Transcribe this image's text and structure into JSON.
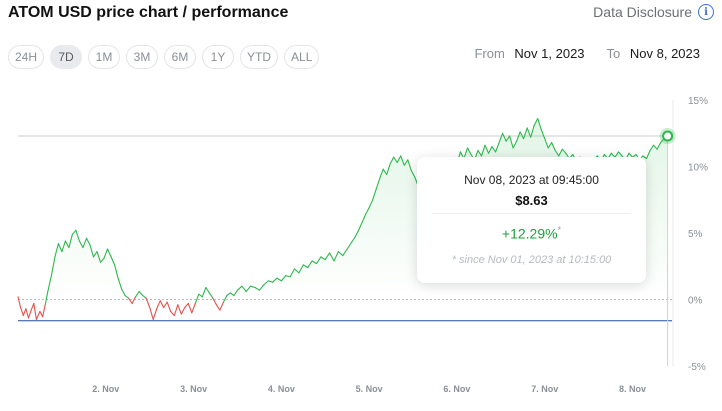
{
  "header": {
    "title": "ATOM USD price chart / performance",
    "disclosure_label": "Data Disclosure",
    "disclosure_icon": "info-icon"
  },
  "ranges": [
    {
      "label": "24H",
      "active": false
    },
    {
      "label": "7D",
      "active": true
    },
    {
      "label": "1M",
      "active": false
    },
    {
      "label": "3M",
      "active": false
    },
    {
      "label": "6M",
      "active": false
    },
    {
      "label": "1Y",
      "active": false
    },
    {
      "label": "YTD",
      "active": false
    },
    {
      "label": "ALL",
      "active": false
    }
  ],
  "date_range": {
    "from_label": "From",
    "from_value": "Nov 1, 2023",
    "to_label": "To",
    "to_value": "Nov 8, 2023"
  },
  "tooltip": {
    "date": "Nov 08, 2023 at 09:45:00",
    "price": "$8.63",
    "change": "+12.29%",
    "change_marker": "*",
    "since": "* since Nov 01, 2023 at 10:15:00"
  },
  "colors": {
    "up": "#2db84d",
    "down": "#e0524f",
    "baseline": "#1f4e9a",
    "marker": "#2db84d"
  },
  "chart_data": {
    "type": "line",
    "x_tick_labels": [
      "2. Nov",
      "3. Nov",
      "4. Nov",
      "5. Nov",
      "6. Nov",
      "7. Nov",
      "8. Nov"
    ],
    "y_tick_labels": [
      "15%",
      "10%",
      "5%",
      "0%",
      "-5%"
    ],
    "ylim": [
      -5,
      15
    ],
    "x_range_days": [
      1.0,
      8.45
    ],
    "series": [
      {
        "points": [
          [
            1.0,
            0.2
          ],
          [
            1.03,
            -0.6
          ],
          [
            1.06,
            -1.2
          ],
          [
            1.09,
            -0.7
          ],
          [
            1.12,
            -1.4
          ],
          [
            1.15,
            -0.8
          ],
          [
            1.18,
            -0.3
          ],
          [
            1.21,
            -1.5
          ],
          [
            1.25,
            -0.9
          ],
          [
            1.28,
            -1.3
          ],
          [
            1.31,
            -0.4
          ],
          [
            1.34,
            0.6
          ],
          [
            1.38,
            1.8
          ],
          [
            1.42,
            3.2
          ],
          [
            1.46,
            4.2
          ],
          [
            1.5,
            3.6
          ],
          [
            1.54,
            4.4
          ],
          [
            1.58,
            3.9
          ],
          [
            1.62,
            4.9
          ],
          [
            1.66,
            5.2
          ],
          [
            1.7,
            4.4
          ],
          [
            1.74,
            3.9
          ],
          [
            1.78,
            4.6
          ],
          [
            1.82,
            4.1
          ],
          [
            1.86,
            3.2
          ],
          [
            1.9,
            3.6
          ],
          [
            1.94,
            2.8
          ],
          [
            1.98,
            3.1
          ],
          [
            2.02,
            3.8
          ],
          [
            2.06,
            3.2
          ],
          [
            2.1,
            2.6
          ],
          [
            2.14,
            1.6
          ],
          [
            2.18,
            0.8
          ],
          [
            2.22,
            0.3
          ],
          [
            2.26,
            0.1
          ],
          [
            2.3,
            -0.3
          ],
          [
            2.34,
            0.2
          ],
          [
            2.38,
            0.6
          ],
          [
            2.42,
            0.3
          ],
          [
            2.46,
            0.1
          ],
          [
            2.5,
            -0.6
          ],
          [
            2.54,
            -1.5
          ],
          [
            2.58,
            -0.7
          ],
          [
            2.62,
            -0.1
          ],
          [
            2.66,
            -0.6
          ],
          [
            2.7,
            -0.2
          ],
          [
            2.74,
            -0.9
          ],
          [
            2.78,
            -1.2
          ],
          [
            2.82,
            -0.4
          ],
          [
            2.86,
            -1.1
          ],
          [
            2.9,
            -0.6
          ],
          [
            2.94,
            -0.3
          ],
          [
            2.98,
            -1.0
          ],
          [
            3.02,
            -0.3
          ],
          [
            3.06,
            0.4
          ],
          [
            3.1,
            0.2
          ],
          [
            3.14,
            0.9
          ],
          [
            3.18,
            0.5
          ],
          [
            3.22,
            0.1
          ],
          [
            3.26,
            -0.4
          ],
          [
            3.3,
            -0.8
          ],
          [
            3.34,
            -0.2
          ],
          [
            3.38,
            0.3
          ],
          [
            3.42,
            0.5
          ],
          [
            3.46,
            0.3
          ],
          [
            3.5,
            0.7
          ],
          [
            3.55,
            1.0
          ],
          [
            3.6,
            0.6
          ],
          [
            3.65,
            1.0
          ],
          [
            3.7,
            0.9
          ],
          [
            3.75,
            0.7
          ],
          [
            3.8,
            1.1
          ],
          [
            3.85,
            1.4
          ],
          [
            3.9,
            1.3
          ],
          [
            3.95,
            1.6
          ],
          [
            4.0,
            1.4
          ],
          [
            4.05,
            1.8
          ],
          [
            4.1,
            1.7
          ],
          [
            4.15,
            2.3
          ],
          [
            4.2,
            2.0
          ],
          [
            4.25,
            2.6
          ],
          [
            4.3,
            2.4
          ],
          [
            4.35,
            2.9
          ],
          [
            4.4,
            2.7
          ],
          [
            4.45,
            3.2
          ],
          [
            4.5,
            3.0
          ],
          [
            4.55,
            3.5
          ],
          [
            4.6,
            2.9
          ],
          [
            4.65,
            3.6
          ],
          [
            4.7,
            3.3
          ],
          [
            4.75,
            3.8
          ],
          [
            4.8,
            4.3
          ],
          [
            4.84,
            4.7
          ],
          [
            4.88,
            5.2
          ],
          [
            4.92,
            5.8
          ],
          [
            4.96,
            6.4
          ],
          [
            5.0,
            6.9
          ],
          [
            5.04,
            7.5
          ],
          [
            5.08,
            8.3
          ],
          [
            5.12,
            9.1
          ],
          [
            5.16,
            9.8
          ],
          [
            5.2,
            9.4
          ],
          [
            5.24,
            10.2
          ],
          [
            5.28,
            10.7
          ],
          [
            5.32,
            10.3
          ],
          [
            5.36,
            10.8
          ],
          [
            5.4,
            10.1
          ],
          [
            5.44,
            10.5
          ],
          [
            5.48,
            9.7
          ],
          [
            5.52,
            9.2
          ],
          [
            5.56,
            8.5
          ],
          [
            5.6,
            8.1
          ],
          [
            5.64,
            8.8
          ],
          [
            5.68,
            8.3
          ],
          [
            5.72,
            7.6
          ],
          [
            5.76,
            7.2
          ],
          [
            5.8,
            8.0
          ],
          [
            5.84,
            8.6
          ],
          [
            5.88,
            9.1
          ],
          [
            5.92,
            8.8
          ],
          [
            5.96,
            9.6
          ],
          [
            6.0,
            10.2
          ],
          [
            6.04,
            11.1
          ],
          [
            6.08,
            10.6
          ],
          [
            6.12,
            11.4
          ],
          [
            6.16,
            10.9
          ],
          [
            6.2,
            10.5
          ],
          [
            6.24,
            11.2
          ],
          [
            6.28,
            10.8
          ],
          [
            6.32,
            11.6
          ],
          [
            6.36,
            11.0
          ],
          [
            6.4,
            11.5
          ],
          [
            6.44,
            11.1
          ],
          [
            6.48,
            11.8
          ],
          [
            6.52,
            12.5
          ],
          [
            6.56,
            11.9
          ],
          [
            6.6,
            12.3
          ],
          [
            6.64,
            11.4
          ],
          [
            6.68,
            11.9
          ],
          [
            6.72,
            12.6
          ],
          [
            6.76,
            12.1
          ],
          [
            6.8,
            12.9
          ],
          [
            6.84,
            12.2
          ],
          [
            6.88,
            13.1
          ],
          [
            6.92,
            13.6
          ],
          [
            6.96,
            12.8
          ],
          [
            7.0,
            12.1
          ],
          [
            7.04,
            11.4
          ],
          [
            7.08,
            11.8
          ],
          [
            7.12,
            11.2
          ],
          [
            7.16,
            10.8
          ],
          [
            7.2,
            11.3
          ],
          [
            7.24,
            11.0
          ],
          [
            7.28,
            10.6
          ],
          [
            7.32,
            10.9
          ],
          [
            7.36,
            10.4
          ],
          [
            7.4,
            10.7
          ],
          [
            7.44,
            10.3
          ],
          [
            7.48,
            10.6
          ],
          [
            7.52,
            10.2
          ],
          [
            7.56,
            10.5
          ],
          [
            7.6,
            10.8
          ],
          [
            7.64,
            10.4
          ],
          [
            7.68,
            10.9
          ],
          [
            7.72,
            10.6
          ],
          [
            7.76,
            11.0
          ],
          [
            7.8,
            10.7
          ],
          [
            7.84,
            11.1
          ],
          [
            7.88,
            10.8
          ],
          [
            7.92,
            10.5
          ],
          [
            7.96,
            11.0
          ],
          [
            8.0,
            10.7
          ],
          [
            8.04,
            10.9
          ],
          [
            8.08,
            10.5
          ],
          [
            8.12,
            10.8
          ],
          [
            8.16,
            10.6
          ],
          [
            8.2,
            11.2
          ],
          [
            8.24,
            11.6
          ],
          [
            8.28,
            11.3
          ],
          [
            8.32,
            11.8
          ],
          [
            8.36,
            12.1
          ],
          [
            8.4,
            12.29
          ]
        ]
      }
    ],
    "reference_lines": {
      "zero": 0,
      "high": 12.29,
      "low": -1.6
    }
  }
}
